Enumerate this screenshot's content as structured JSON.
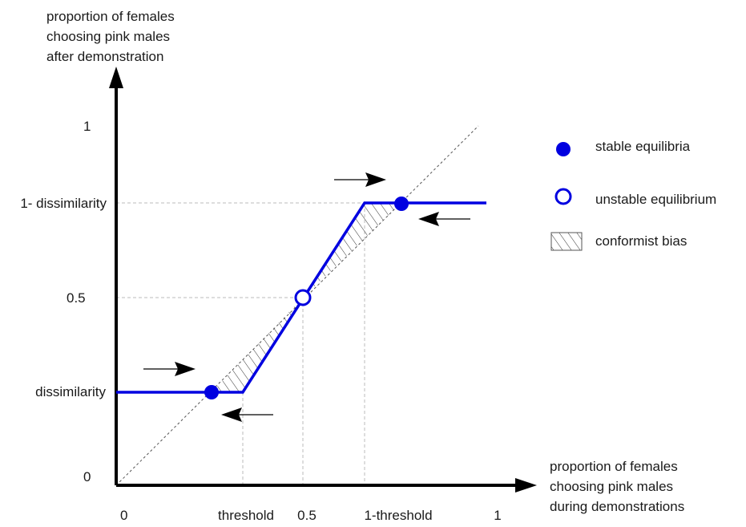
{
  "diagram": {
    "y_axis_label": [
      "proportion of females",
      "choosing pink males",
      "after demonstration"
    ],
    "x_axis_label": [
      "proportion of females",
      "choosing pink males",
      "during demonstrations"
    ],
    "x_ticks": {
      "zero": "0",
      "threshold": "threshold",
      "half": "0.5",
      "one_minus_threshold": "1-threshold",
      "one": "1"
    },
    "y_ticks": {
      "zero": "0",
      "dissimilarity": "dissimilarity",
      "half": "0.5",
      "one_minus_dissimilarity": "1- dissimilarity",
      "one": "1"
    },
    "legend": {
      "stable": "stable equilibria",
      "unstable": "unstable equilibrium",
      "conformist": "conformist bias"
    },
    "colors": {
      "curve": "#0000e0",
      "axes": "#000000",
      "guide_lines": "#bbbbbb",
      "hatch": "#333333"
    }
  }
}
